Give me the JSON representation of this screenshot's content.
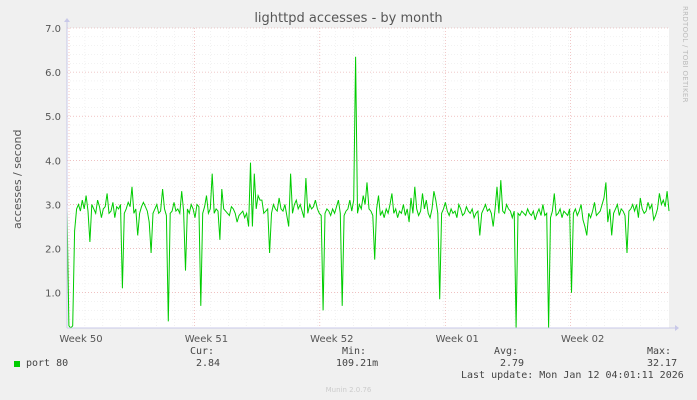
{
  "chart_data": {
    "type": "line",
    "title": "lighttpd accesses - by month",
    "ylabel": "accesses / second",
    "ylim": [
      0.2,
      7.0
    ],
    "yticks": [
      "1.0",
      "2.0",
      "3.0",
      "4.0",
      "5.0",
      "6.0",
      "7.0"
    ],
    "xticks": [
      "Week 50",
      "Week 51",
      "Week 52",
      "Week 01",
      "Week 02"
    ],
    "series": [
      {
        "name": "port 80",
        "color": "#00cc00",
        "points": [
          [
            0,
            2.9
          ],
          [
            1,
            0.25
          ],
          [
            2,
            0.2
          ],
          [
            3,
            0.25
          ],
          [
            4,
            2.4
          ],
          [
            5,
            2.9
          ],
          [
            6,
            3.0
          ],
          [
            7,
            2.85
          ],
          [
            8,
            3.1
          ],
          [
            9,
            2.9
          ],
          [
            10,
            3.2
          ],
          [
            11,
            2.85
          ],
          [
            12,
            2.15
          ],
          [
            13,
            3.0
          ],
          [
            14,
            2.9
          ],
          [
            15,
            2.8
          ],
          [
            16,
            3.1
          ],
          [
            17,
            2.95
          ],
          [
            18,
            2.7
          ],
          [
            19,
            2.9
          ],
          [
            20,
            2.95
          ],
          [
            21,
            3.25
          ],
          [
            22,
            2.8
          ],
          [
            23,
            2.85
          ],
          [
            24,
            3.05
          ],
          [
            25,
            2.7
          ],
          [
            26,
            2.95
          ],
          [
            27,
            2.9
          ],
          [
            28,
            3.0
          ],
          [
            29,
            1.1
          ],
          [
            30,
            2.8
          ],
          [
            31,
            2.9
          ],
          [
            32,
            3.05
          ],
          [
            33,
            2.95
          ],
          [
            34,
            3.4
          ],
          [
            35,
            2.8
          ],
          [
            36,
            2.9
          ],
          [
            37,
            2.3
          ],
          [
            38,
            2.8
          ],
          [
            39,
            2.95
          ],
          [
            40,
            3.05
          ],
          [
            41,
            2.95
          ],
          [
            42,
            2.85
          ],
          [
            43,
            2.6
          ],
          [
            44,
            1.9
          ],
          [
            45,
            2.8
          ],
          [
            46,
            2.9
          ],
          [
            47,
            3.0
          ],
          [
            48,
            2.8
          ],
          [
            49,
            2.85
          ],
          [
            50,
            3.35
          ],
          [
            51,
            2.9
          ],
          [
            52,
            2.75
          ],
          [
            53,
            0.35
          ],
          [
            54,
            2.8
          ],
          [
            55,
            2.85
          ],
          [
            56,
            3.05
          ],
          [
            57,
            2.85
          ],
          [
            58,
            2.9
          ],
          [
            59,
            2.8
          ],
          [
            60,
            3.3
          ],
          [
            61,
            2.85
          ],
          [
            62,
            1.5
          ],
          [
            63,
            2.9
          ],
          [
            64,
            2.8
          ],
          [
            65,
            3.0
          ],
          [
            66,
            2.9
          ],
          [
            67,
            2.7
          ],
          [
            68,
            3.0
          ],
          [
            69,
            2.95
          ],
          [
            70,
            0.7
          ],
          [
            71,
            2.8
          ],
          [
            72,
            2.95
          ],
          [
            73,
            3.2
          ],
          [
            74,
            2.8
          ],
          [
            75,
            2.9
          ],
          [
            76,
            3.7
          ],
          [
            77,
            2.8
          ],
          [
            78,
            2.9
          ],
          [
            79,
            2.85
          ],
          [
            80,
            2.2
          ],
          [
            81,
            3.35
          ],
          [
            82,
            2.9
          ],
          [
            83,
            2.85
          ],
          [
            84,
            2.8
          ],
          [
            85,
            2.75
          ],
          [
            86,
            2.95
          ],
          [
            87,
            2.9
          ],
          [
            88,
            2.8
          ],
          [
            89,
            2.6
          ],
          [
            90,
            2.75
          ],
          [
            91,
            2.8
          ],
          [
            92,
            2.85
          ],
          [
            93,
            2.7
          ],
          [
            94,
            2.8
          ],
          [
            95,
            2.5
          ],
          [
            96,
            3.95
          ],
          [
            97,
            2.5
          ],
          [
            98,
            3.7
          ],
          [
            99,
            2.9
          ],
          [
            100,
            3.2
          ],
          [
            101,
            3.1
          ],
          [
            102,
            3.1
          ],
          [
            103,
            2.8
          ],
          [
            104,
            2.85
          ],
          [
            105,
            2.9
          ],
          [
            106,
            1.9
          ],
          [
            107,
            2.8
          ],
          [
            108,
            3.0
          ],
          [
            109,
            2.9
          ],
          [
            110,
            2.85
          ],
          [
            111,
            3.15
          ],
          [
            112,
            2.9
          ],
          [
            113,
            2.85
          ],
          [
            114,
            3.0
          ],
          [
            115,
            2.75
          ],
          [
            116,
            2.5
          ],
          [
            117,
            3.7
          ],
          [
            118,
            2.8
          ],
          [
            119,
            3.0
          ],
          [
            120,
            3.1
          ],
          [
            121,
            2.9
          ],
          [
            122,
            3.0
          ],
          [
            123,
            2.85
          ],
          [
            124,
            2.7
          ],
          [
            125,
            3.6
          ],
          [
            126,
            2.8
          ],
          [
            127,
            3.0
          ],
          [
            128,
            2.9
          ],
          [
            129,
            2.95
          ],
          [
            130,
            3.1
          ],
          [
            131,
            2.9
          ],
          [
            132,
            2.8
          ],
          [
            133,
            2.75
          ],
          [
            134,
            0.6
          ],
          [
            135,
            2.8
          ],
          [
            136,
            2.9
          ],
          [
            137,
            2.85
          ],
          [
            138,
            2.75
          ],
          [
            139,
            2.9
          ],
          [
            140,
            2.8
          ],
          [
            141,
            2.95
          ],
          [
            142,
            3.1
          ],
          [
            143,
            2.8
          ],
          [
            144,
            0.7
          ],
          [
            145,
            2.75
          ],
          [
            146,
            2.85
          ],
          [
            147,
            2.9
          ],
          [
            148,
            3.1
          ],
          [
            149,
            2.85
          ],
          [
            150,
            3.1
          ],
          [
            151,
            6.35
          ],
          [
            152,
            2.8
          ],
          [
            153,
            3.0
          ],
          [
            154,
            2.9
          ],
          [
            155,
            3.2
          ],
          [
            156,
            3.0
          ],
          [
            157,
            3.5
          ],
          [
            158,
            2.9
          ],
          [
            159,
            2.85
          ],
          [
            160,
            2.75
          ],
          [
            161,
            1.75
          ],
          [
            162,
            2.9
          ],
          [
            163,
            3.2
          ],
          [
            164,
            2.75
          ],
          [
            165,
            2.85
          ],
          [
            166,
            2.7
          ],
          [
            167,
            2.9
          ],
          [
            168,
            2.8
          ],
          [
            169,
            3.0
          ],
          [
            170,
            3.25
          ],
          [
            171,
            2.8
          ],
          [
            172,
            2.9
          ],
          [
            173,
            2.7
          ],
          [
            174,
            2.85
          ],
          [
            175,
            2.8
          ],
          [
            176,
            3.0
          ],
          [
            177,
            2.75
          ],
          [
            178,
            2.9
          ],
          [
            179,
            2.6
          ],
          [
            180,
            3.15
          ],
          [
            181,
            2.8
          ],
          [
            182,
            3.4
          ],
          [
            183,
            2.9
          ],
          [
            184,
            2.75
          ],
          [
            185,
            2.85
          ],
          [
            186,
            3.25
          ],
          [
            187,
            2.9
          ],
          [
            188,
            3.1
          ],
          [
            189,
            2.8
          ],
          [
            190,
            2.7
          ],
          [
            191,
            2.9
          ],
          [
            192,
            3.3
          ],
          [
            193,
            3.1
          ],
          [
            194,
            2.8
          ],
          [
            195,
            0.85
          ],
          [
            196,
            2.8
          ],
          [
            197,
            2.9
          ],
          [
            198,
            3.05
          ],
          [
            199,
            2.85
          ],
          [
            200,
            2.75
          ],
          [
            201,
            2.9
          ],
          [
            202,
            2.8
          ],
          [
            203,
            2.85
          ],
          [
            204,
            2.7
          ],
          [
            205,
            3.0
          ],
          [
            206,
            2.9
          ],
          [
            207,
            2.75
          ],
          [
            208,
            2.8
          ],
          [
            209,
            2.95
          ],
          [
            210,
            2.85
          ],
          [
            211,
            2.8
          ],
          [
            212,
            2.9
          ],
          [
            213,
            2.7
          ],
          [
            214,
            2.8
          ],
          [
            215,
            2.85
          ],
          [
            216,
            2.3
          ],
          [
            217,
            2.8
          ],
          [
            218,
            2.9
          ],
          [
            219,
            3.0
          ],
          [
            220,
            2.85
          ],
          [
            221,
            2.9
          ],
          [
            222,
            2.8
          ],
          [
            223,
            2.5
          ],
          [
            224,
            2.9
          ],
          [
            225,
            3.4
          ],
          [
            226,
            2.8
          ],
          [
            227,
            3.55
          ],
          [
            228,
            2.85
          ],
          [
            229,
            2.8
          ],
          [
            230,
            3.0
          ],
          [
            231,
            2.9
          ],
          [
            232,
            2.85
          ],
          [
            233,
            2.7
          ],
          [
            234,
            2.85
          ],
          [
            235,
            0.2
          ],
          [
            236,
            2.8
          ],
          [
            237,
            2.75
          ],
          [
            238,
            2.85
          ],
          [
            239,
            2.8
          ],
          [
            240,
            2.75
          ],
          [
            241,
            2.9
          ],
          [
            242,
            2.8
          ],
          [
            243,
            2.75
          ],
          [
            244,
            2.85
          ],
          [
            245,
            2.65
          ],
          [
            246,
            2.8
          ],
          [
            247,
            2.9
          ],
          [
            248,
            2.75
          ],
          [
            249,
            3.0
          ],
          [
            250,
            2.75
          ],
          [
            251,
            2.8
          ],
          [
            252,
            0.2
          ],
          [
            253,
            2.7
          ],
          [
            254,
            2.85
          ],
          [
            255,
            3.25
          ],
          [
            256,
            2.75
          ],
          [
            257,
            2.8
          ],
          [
            258,
            2.9
          ],
          [
            259,
            2.7
          ],
          [
            260,
            2.85
          ],
          [
            261,
            2.8
          ],
          [
            262,
            2.75
          ],
          [
            263,
            2.9
          ],
          [
            264,
            1.0
          ],
          [
            265,
            2.8
          ],
          [
            266,
            2.9
          ],
          [
            267,
            2.75
          ],
          [
            268,
            2.85
          ],
          [
            269,
            3.0
          ],
          [
            270,
            2.65
          ],
          [
            271,
            2.5
          ],
          [
            272,
            2.3
          ],
          [
            273,
            2.8
          ],
          [
            274,
            2.7
          ],
          [
            275,
            2.85
          ],
          [
            276,
            3.05
          ],
          [
            277,
            2.75
          ],
          [
            278,
            2.8
          ],
          [
            279,
            2.85
          ],
          [
            280,
            3.0
          ],
          [
            281,
            3.15
          ],
          [
            282,
            3.5
          ],
          [
            283,
            2.6
          ],
          [
            284,
            2.9
          ],
          [
            285,
            2.3
          ],
          [
            286,
            2.8
          ],
          [
            287,
            2.9
          ],
          [
            288,
            3.0
          ],
          [
            289,
            2.75
          ],
          [
            290,
            2.9
          ],
          [
            291,
            2.85
          ],
          [
            292,
            2.75
          ],
          [
            293,
            1.9
          ],
          [
            294,
            2.85
          ],
          [
            295,
            2.9
          ],
          [
            296,
            3.0
          ],
          [
            297,
            2.85
          ],
          [
            298,
            3.0
          ],
          [
            299,
            2.7
          ],
          [
            300,
            3.15
          ],
          [
            301,
            2.9
          ],
          [
            302,
            2.8
          ],
          [
            303,
            2.85
          ],
          [
            304,
            3.05
          ],
          [
            305,
            2.9
          ],
          [
            306,
            3.0
          ],
          [
            307,
            2.65
          ],
          [
            308,
            2.75
          ],
          [
            309,
            2.9
          ],
          [
            310,
            3.25
          ],
          [
            311,
            3.0
          ],
          [
            312,
            3.1
          ],
          [
            313,
            2.95
          ],
          [
            314,
            3.3
          ],
          [
            315,
            2.85
          ]
        ]
      }
    ]
  },
  "side_text": "RRDTOOL / TOBI OETIKER",
  "legend": {
    "series_name": "port 80",
    "cur_label": "Cur:",
    "cur_value": "2.84",
    "min_label": "Min:",
    "min_value": "109.21m",
    "avg_label": "Avg:",
    "avg_value": "2.79",
    "max_label": "Max:",
    "max_value": "32.17",
    "last_update": "Last update: Mon Jan 12 04:01:11 2026"
  },
  "footer": "Munin 2.0.76"
}
